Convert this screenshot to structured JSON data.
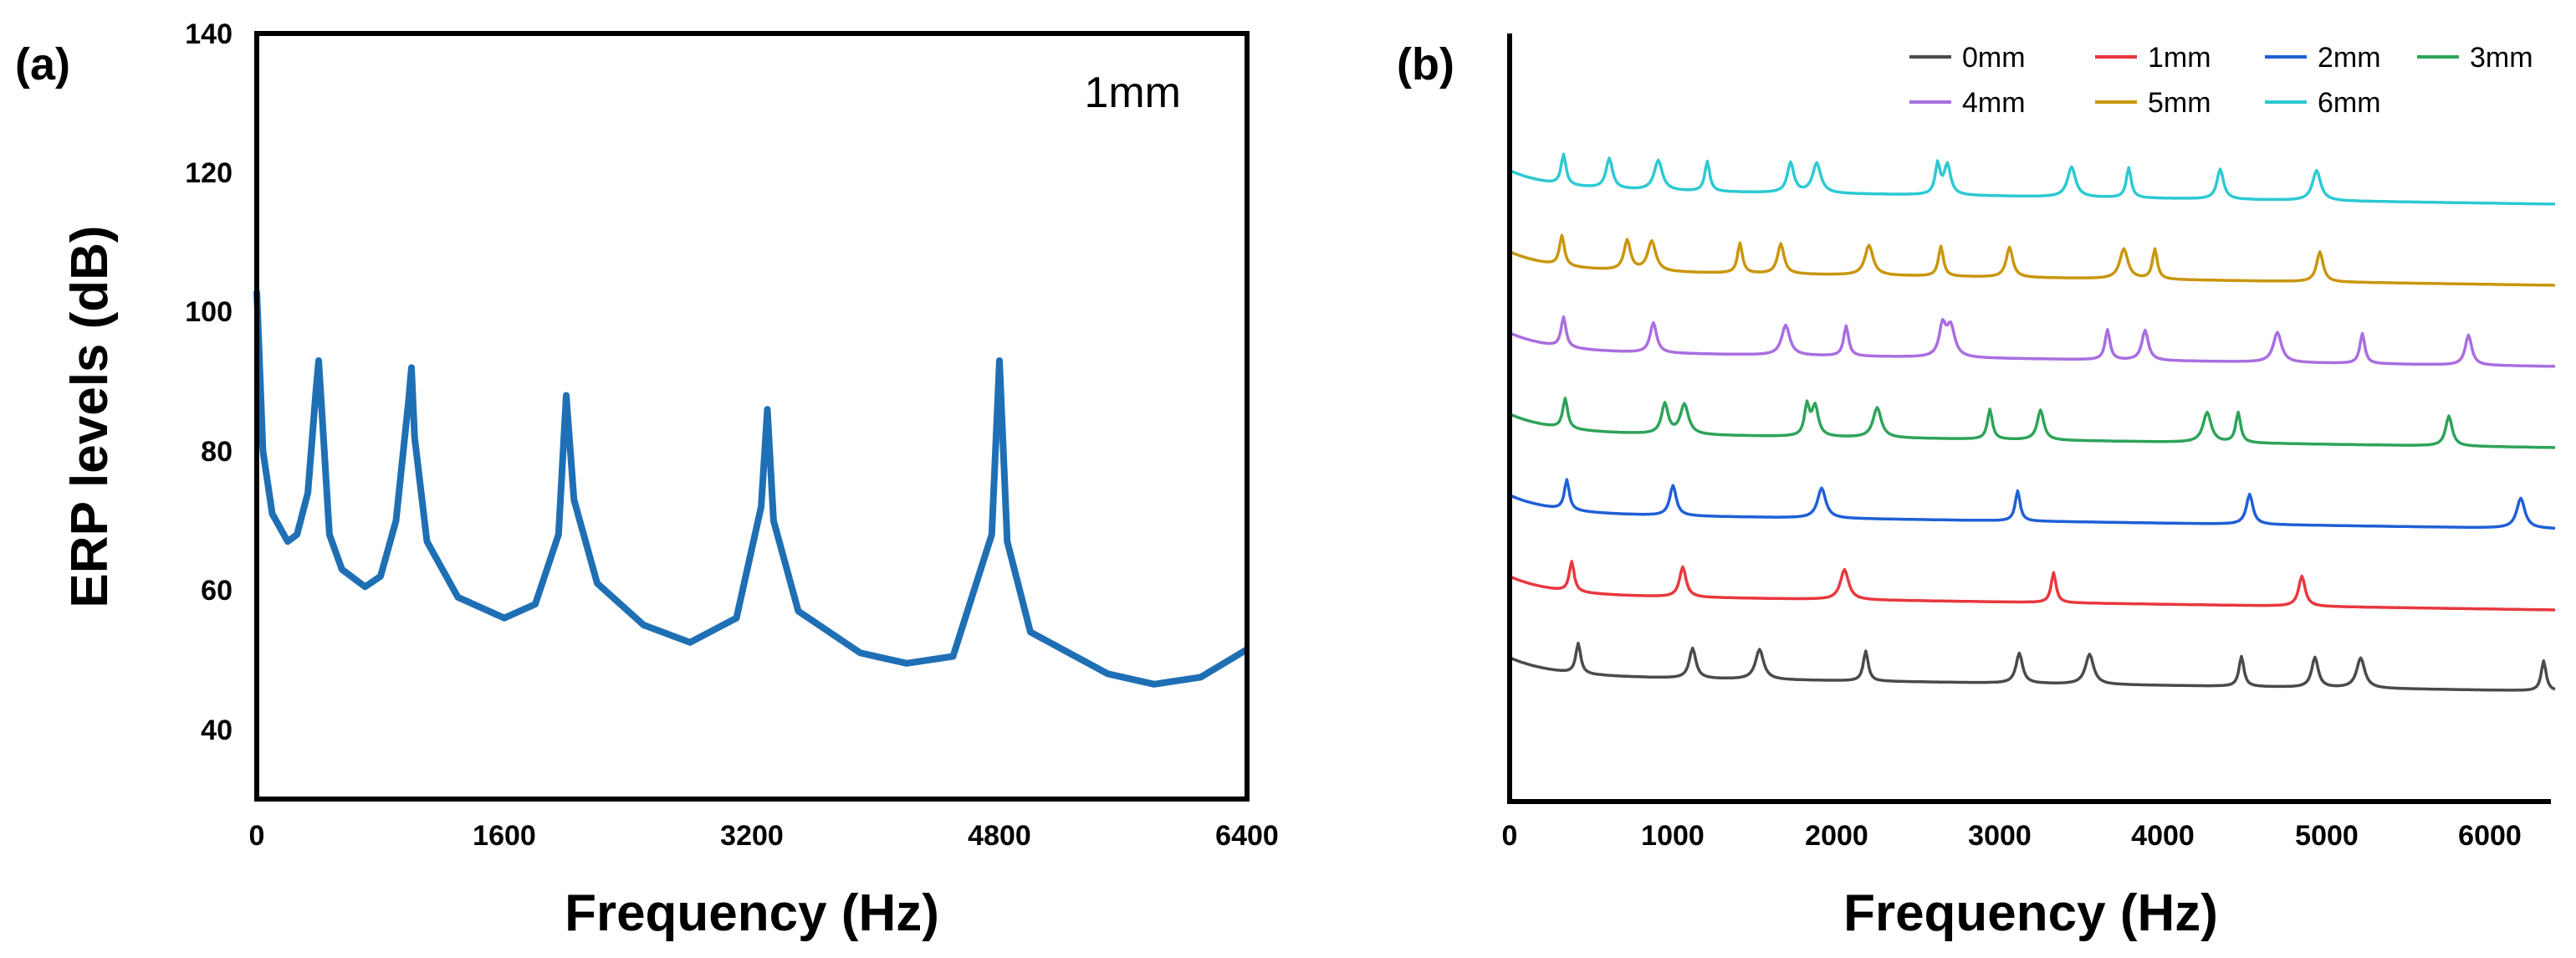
{
  "chart_data": [
    {
      "panel": "(a)",
      "type": "line",
      "annotation": "1mm",
      "xlabel": "Frequency (Hz)",
      "ylabel": "ERP levels (dB)",
      "xlim": [
        0,
        6400
      ],
      "ylim": [
        30,
        140
      ],
      "xticks": [
        0,
        1600,
        3200,
        4800,
        6400
      ],
      "yticks": [
        40,
        60,
        80,
        100,
        120,
        140
      ],
      "grid": false,
      "colors": {
        "line": "#1f6fb5"
      },
      "series": [
        {
          "x": [
            0,
            40,
            100,
            200,
            260,
            330,
            380,
            400,
            420,
            470,
            550,
            700,
            800,
            900,
            980,
            1000,
            1020,
            1100,
            1300,
            1600,
            1800,
            1950,
            2000,
            2050,
            2200,
            2500,
            2800,
            3100,
            3260,
            3300,
            3340,
            3500,
            3900,
            4200,
            4500,
            4750,
            4800,
            4850,
            5000,
            5500,
            5800,
            6100,
            6400
          ],
          "values": [
            103,
            80,
            71,
            67,
            68,
            74,
            88,
            93,
            86,
            68,
            63,
            60.5,
            62,
            70,
            87,
            92,
            82,
            67,
            59,
            56,
            58,
            68,
            88,
            73,
            61,
            55,
            52.5,
            56,
            72,
            86,
            70,
            57,
            51,
            49.5,
            50.5,
            68,
            93,
            67,
            54,
            48,
            46.5,
            47.5,
            51.5
          ]
        }
      ]
    },
    {
      "panel": "(b)",
      "type": "line",
      "xlabel": "Frequency (Hz)",
      "xlim": [
        0,
        6400
      ],
      "xticks": [
        0,
        1000,
        2000,
        3000,
        4000,
        5000,
        6000
      ],
      "grid": false,
      "legend_position": "top-right",
      "series": [
        {
          "name": "0mm",
          "color": "#4a4a4a",
          "offset": 0,
          "peaks": [
            420,
            1120,
            1530,
            2180,
            3120,
            3550,
            4480,
            4930,
            5210,
            6330
          ]
        },
        {
          "name": "1mm",
          "color": "#e8383d",
          "offset": 1,
          "peaks": [
            380,
            1060,
            2050,
            3330,
            4850
          ]
        },
        {
          "name": "2mm",
          "color": "#1f5fd6",
          "offset": 2,
          "peaks": [
            350,
            1000,
            1910,
            3110,
            4530,
            6190
          ]
        },
        {
          "name": "3mm",
          "color": "#2ea35a",
          "offset": 3,
          "peaks": [
            340,
            950,
            1070,
            1820,
            1870,
            2250,
            2940,
            3250,
            4270,
            4460,
            5750
          ]
        },
        {
          "name": "4mm",
          "color": "#a96ee0",
          "offset": 4,
          "peaks": [
            330,
            880,
            1690,
            2060,
            2650,
            2700,
            3660,
            3890,
            4700,
            5220,
            5870
          ]
        },
        {
          "name": "5mm",
          "color": "#c9960c",
          "offset": 5,
          "peaks": [
            320,
            720,
            870,
            1410,
            1660,
            2200,
            2640,
            3060,
            3760,
            3950,
            4960
          ]
        },
        {
          "name": "6mm",
          "color": "#2cc9d3",
          "offset": 6,
          "peaks": [
            330,
            610,
            910,
            1210,
            1720,
            1880,
            2620,
            2680,
            3440,
            3790,
            4350,
            4940
          ]
        }
      ]
    }
  ],
  "labels": {
    "panel_a": "(a)",
    "panel_b": "(b)",
    "annotation_a": "1mm",
    "xlabel_a": "Frequency (Hz)",
    "ylabel_a": "ERP levels (dB)",
    "xlabel_b": "Frequency (Hz)",
    "xticks_a": [
      "0",
      "1600",
      "3200",
      "4800",
      "6400"
    ],
    "yticks_a": [
      "40",
      "60",
      "80",
      "100",
      "120",
      "140"
    ],
    "xticks_b": [
      "0",
      "1000",
      "2000",
      "3000",
      "4000",
      "5000",
      "6000"
    ],
    "legend": [
      "0mm",
      "1mm",
      "2mm",
      "3mm",
      "4mm",
      "5mm",
      "6mm"
    ]
  }
}
